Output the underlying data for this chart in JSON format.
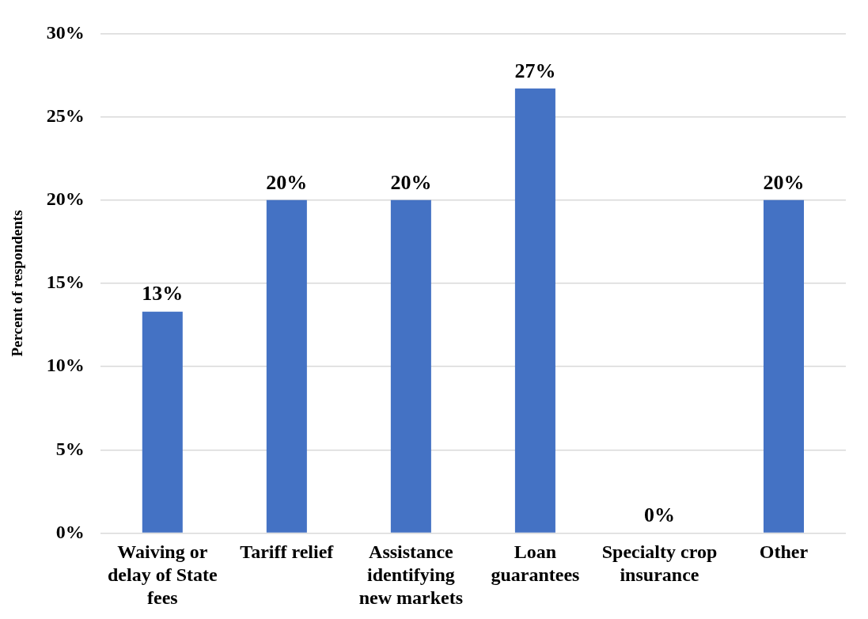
{
  "chart_data": {
    "type": "bar",
    "ylabel": "Percent of respondents",
    "categories": [
      "Waiving or delay of State fees",
      "Tariff relief",
      "Assistance identifying new markets",
      "Loan guarantees",
      "Specialty crop insurance",
      "Other"
    ],
    "values": [
      13.3,
      20,
      20,
      26.7,
      0,
      20
    ],
    "value_labels": [
      "13%",
      "20%",
      "20%",
      "27%",
      "0%",
      "20%"
    ],
    "color": "#4472c4",
    "ylim": [
      0,
      30
    ],
    "yticks": [
      {
        "value": 0,
        "label": "0%"
      },
      {
        "value": 5,
        "label": "5%"
      },
      {
        "value": 10,
        "label": "10%"
      },
      {
        "value": 15,
        "label": "15%"
      },
      {
        "value": 20,
        "label": "20%"
      },
      {
        "value": 25,
        "label": "25%"
      },
      {
        "value": 30,
        "label": "30%"
      }
    ],
    "grid": "y",
    "legend": false
  }
}
